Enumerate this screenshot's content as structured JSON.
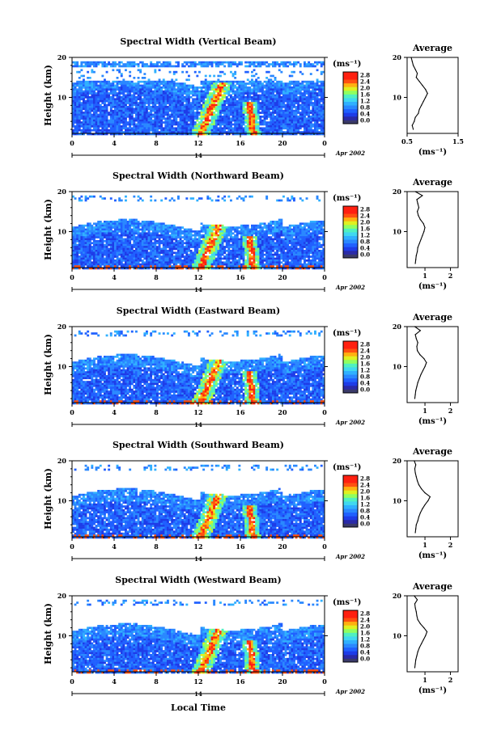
{
  "chart_data": {
    "type": "heatmap",
    "xlabel": "Local Time",
    "x_ticks": [
      "0",
      "4",
      "8",
      "12",
      "16",
      "20",
      "0"
    ],
    "xlim": [
      0,
      24
    ],
    "date_marker": "14",
    "date_label": "Apr 2002",
    "ylabel": "Height (km)",
    "y_ticks": [
      "10",
      "20"
    ],
    "ylim": [
      1,
      20
    ],
    "colorbar": {
      "unit": "(ms⁻¹)",
      "ticks": [
        "2.8",
        "2.4",
        "2.0",
        "1.6",
        "1.2",
        "0.8",
        "0.4",
        "0.0"
      ],
      "range": [
        0,
        2.8
      ]
    },
    "profile": {
      "title": "Average",
      "xlabel": "(ms⁻¹)",
      "height_km": [
        2,
        3,
        4,
        5,
        6,
        7,
        8,
        9,
        10,
        11,
        12,
        13,
        14,
        15,
        16,
        17,
        18,
        19,
        20
      ]
    },
    "panels": [
      {
        "title": "Spectral Width (Vertical Beam)",
        "profile_ticks": [
          "0.5",
          "1.5"
        ],
        "profile_xlim": [
          0.5,
          1.5
        ],
        "profile_values": [
          0.62,
          0.6,
          0.64,
          0.66,
          0.72,
          0.74,
          0.78,
          0.82,
          0.86,
          0.9,
          0.86,
          0.8,
          0.74,
          0.68,
          0.7,
          0.66,
          0.62,
          0.6,
          0.58
        ]
      },
      {
        "title": "Spectral Width (Northward Beam)",
        "profile_ticks": [
          "1",
          "2"
        ],
        "profile_xlim": [
          0.3,
          2.3
        ],
        "profile_values": [
          0.62,
          0.64,
          0.66,
          0.7,
          0.72,
          0.78,
          0.84,
          0.9,
          0.96,
          1.0,
          0.94,
          0.82,
          0.74,
          0.7,
          0.76,
          0.72,
          0.68,
          0.9,
          0.62
        ]
      },
      {
        "title": "Spectral Width (Eastward Beam)",
        "profile_ticks": [
          "1",
          "2"
        ],
        "profile_xlim": [
          0.3,
          2.3
        ],
        "profile_values": [
          0.6,
          0.62,
          0.64,
          0.68,
          0.72,
          0.78,
          0.84,
          0.92,
          1.0,
          1.06,
          0.96,
          0.8,
          0.7,
          0.68,
          0.72,
          0.66,
          0.62,
          0.82,
          0.6
        ]
      },
      {
        "title": "Spectral Width (Southward Beam)",
        "profile_ticks": [
          "1",
          "2"
        ],
        "profile_xlim": [
          0.3,
          2.3
        ],
        "profile_values": [
          0.62,
          0.64,
          0.66,
          0.72,
          0.76,
          0.82,
          0.9,
          1.0,
          1.12,
          1.2,
          1.0,
          0.86,
          0.76,
          0.7,
          0.66,
          0.62,
          0.6,
          0.64,
          0.58
        ]
      },
      {
        "title": "Spectral Width (Westward Beam)",
        "profile_ticks": [
          "1",
          "2"
        ],
        "profile_xlim": [
          0.3,
          2.3
        ],
        "profile_values": [
          0.6,
          0.62,
          0.64,
          0.68,
          0.72,
          0.78,
          0.86,
          0.94,
          1.02,
          1.08,
          0.96,
          0.82,
          0.72,
          0.68,
          0.66,
          0.62,
          0.6,
          0.7,
          0.58
        ]
      }
    ]
  }
}
